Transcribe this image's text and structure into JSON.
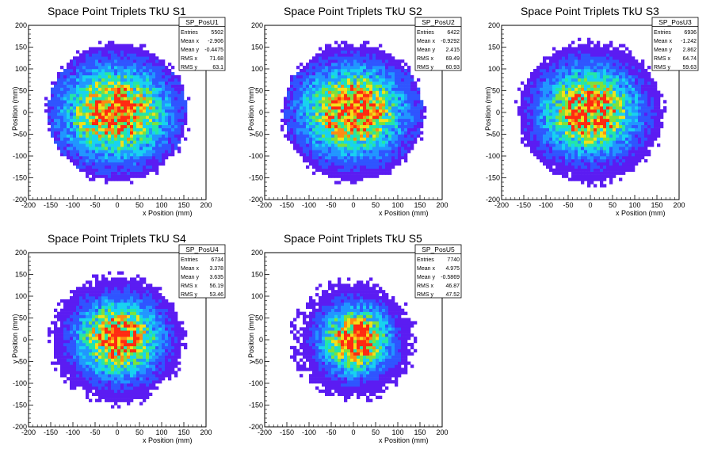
{
  "chart_data": [
    {
      "type": "heatmap",
      "title": "Space Point Triplets TkU S1",
      "xlabel": "x Position (mm)",
      "ylabel": "y Position (mm)",
      "xlim": [
        -200,
        200
      ],
      "ylim": [
        -200,
        200
      ],
      "x_ticks": [
        -200,
        -150,
        -100,
        -50,
        0,
        50,
        100,
        150,
        200
      ],
      "y_ticks": [
        -200,
        -150,
        -100,
        -50,
        0,
        50,
        100,
        150,
        200
      ],
      "stats": {
        "name": "SP_PosU1",
        "rows": [
          {
            "label": "Entries",
            "value": "5502"
          },
          {
            "label": "Mean x",
            "value": "-2.906"
          },
          {
            "label": "Mean y",
            "value": "-0.4475"
          },
          {
            "label": "RMS x",
            "value": "71.68"
          },
          {
            "label": "RMS y",
            "value": "63.1"
          }
        ]
      },
      "distribution": {
        "mean_x": -2.906,
        "mean_y": -0.4475,
        "rms_x": 71.68,
        "rms_y": 63.1,
        "radius": 160
      }
    },
    {
      "type": "heatmap",
      "title": "Space Point Triplets TkU S2",
      "xlabel": "x Position (mm)",
      "ylabel": "y Position (mm)",
      "xlim": [
        -200,
        200
      ],
      "ylim": [
        -200,
        200
      ],
      "x_ticks": [
        -200,
        -150,
        -100,
        -50,
        0,
        50,
        100,
        150,
        200
      ],
      "y_ticks": [
        -200,
        -150,
        -100,
        -50,
        0,
        50,
        100,
        150,
        200
      ],
      "stats": {
        "name": "SP_PosU2",
        "rows": [
          {
            "label": "Entries",
            "value": "6422"
          },
          {
            "label": "Mean x",
            "value": "-0.9292"
          },
          {
            "label": "Mean y",
            "value": "2.415"
          },
          {
            "label": "RMS x",
            "value": "69.49"
          },
          {
            "label": "RMS y",
            "value": "60.93"
          }
        ]
      },
      "distribution": {
        "mean_x": -0.9292,
        "mean_y": 2.415,
        "rms_x": 69.49,
        "rms_y": 60.93,
        "radius": 160
      }
    },
    {
      "type": "heatmap",
      "title": "Space Point Triplets TkU S3",
      "xlabel": "x Position (mm)",
      "ylabel": "y Position (mm)",
      "xlim": [
        -200,
        200
      ],
      "ylim": [
        -200,
        200
      ],
      "x_ticks": [
        -200,
        -150,
        -100,
        -50,
        0,
        50,
        100,
        150,
        200
      ],
      "y_ticks": [
        -200,
        -150,
        -100,
        -50,
        0,
        50,
        100,
        150,
        200
      ],
      "stats": {
        "name": "SP_PosU3",
        "rows": [
          {
            "label": "Entries",
            "value": "6936"
          },
          {
            "label": "Mean x",
            "value": "-1.242"
          },
          {
            "label": "Mean y",
            "value": "2.862"
          },
          {
            "label": "RMS x",
            "value": "64.74"
          },
          {
            "label": "RMS y",
            "value": "59.63"
          }
        ]
      },
      "distribution": {
        "mean_x": -1.242,
        "mean_y": 2.862,
        "rms_x": 64.74,
        "rms_y": 59.63,
        "radius": 165
      }
    },
    {
      "type": "heatmap",
      "title": "Space Point Triplets TkU S4",
      "xlabel": "x Position (mm)",
      "ylabel": "y Position (mm)",
      "xlim": [
        -200,
        200
      ],
      "ylim": [
        -200,
        200
      ],
      "x_ticks": [
        -200,
        -150,
        -100,
        -50,
        0,
        50,
        100,
        150,
        200
      ],
      "y_ticks": [
        -200,
        -150,
        -100,
        -50,
        0,
        50,
        100,
        150,
        200
      ],
      "stats": {
        "name": "SP_PosU4",
        "rows": [
          {
            "label": "Entries",
            "value": "6734"
          },
          {
            "label": "Mean x",
            "value": "3.378"
          },
          {
            "label": "Mean y",
            "value": "3.635"
          },
          {
            "label": "RMS x",
            "value": "56.19"
          },
          {
            "label": "RMS y",
            "value": "53.46"
          }
        ]
      },
      "distribution": {
        "mean_x": 3.378,
        "mean_y": 3.635,
        "rms_x": 56.19,
        "rms_y": 53.46,
        "radius": 150
      }
    },
    {
      "type": "heatmap",
      "title": "Space Point Triplets TkU S5",
      "xlabel": "x Position (mm)",
      "ylabel": "y Position (mm)",
      "xlim": [
        -200,
        200
      ],
      "ylim": [
        -200,
        200
      ],
      "x_ticks": [
        -200,
        -150,
        -100,
        -50,
        0,
        50,
        100,
        150,
        200
      ],
      "y_ticks": [
        -200,
        -150,
        -100,
        -50,
        0,
        50,
        100,
        150,
        200
      ],
      "stats": {
        "name": "SP_PosU5",
        "rows": [
          {
            "label": "Entries",
            "value": "7740"
          },
          {
            "label": "Mean x",
            "value": "4.975"
          },
          {
            "label": "Mean y",
            "value": "-0.5869"
          },
          {
            "label": "RMS x",
            "value": "46.87"
          },
          {
            "label": "RMS y",
            "value": "47.52"
          }
        ]
      },
      "distribution": {
        "mean_x": 4.975,
        "mean_y": -0.5869,
        "rms_x": 46.87,
        "rms_y": 47.52,
        "radius": 140
      }
    }
  ],
  "colors": {
    "palette": [
      "#5b1cf2",
      "#2f55ff",
      "#2196ff",
      "#18d2f0",
      "#24e6a6",
      "#7ee13c",
      "#f2e11a",
      "#ff8b12",
      "#ff2a12"
    ]
  }
}
